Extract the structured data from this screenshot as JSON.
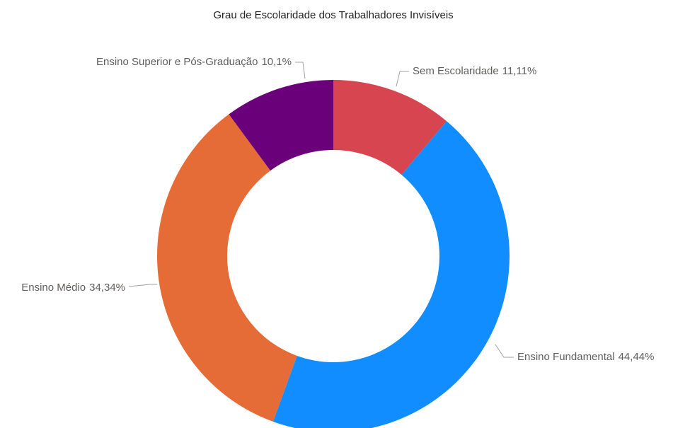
{
  "chart_data": {
    "type": "donut",
    "title": "Grau de Escolaridade dos Trabalhadores Invisíveis",
    "categories": [
      "Sem Escolaridade",
      "Ensino Fundamental",
      "Ensino Médio",
      "Ensino Superior e Pós-Graduação"
    ],
    "values": [
      11.11,
      44.44,
      34.34,
      10.1
    ],
    "value_labels": [
      "11,11%",
      "44,44%",
      "34,34%",
      "10,1%"
    ],
    "colors": [
      "#D64550",
      "#118DFF",
      "#E66C37",
      "#6B007B"
    ]
  }
}
